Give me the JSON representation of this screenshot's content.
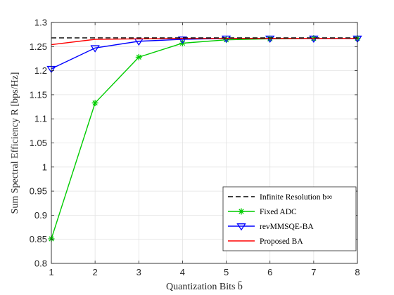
{
  "chart_data": {
    "type": "line",
    "xlabel": "Quantization Bits b̄",
    "ylabel": "Sum Spectral Efficiency R [bps/Hz]",
    "xlim": [
      1,
      8
    ],
    "ylim": [
      0.8,
      1.3
    ],
    "x_ticks": [
      "1",
      "2",
      "3",
      "4",
      "5",
      "6",
      "7",
      "8"
    ],
    "y_ticks": [
      "0.8",
      "0.85",
      "0.9",
      "0.95",
      "1",
      "1.05",
      "1.1",
      "1.15",
      "1.2",
      "1.25",
      "1.3"
    ],
    "grid": true,
    "legend_position": "bottom-right",
    "x": [
      1,
      2,
      3,
      4,
      5,
      6,
      7,
      8
    ],
    "series": [
      {
        "name": "Infinite Resolution b∞",
        "color": "#000000",
        "line": "dashed",
        "marker": "none",
        "values": [
          1.268,
          1.268,
          1.268,
          1.268,
          1.268,
          1.268,
          1.268,
          1.268
        ]
      },
      {
        "name": "Fixed ADC",
        "color": "#00cc00",
        "line": "solid",
        "marker": "asterisk",
        "values": [
          0.851,
          1.133,
          1.228,
          1.257,
          1.264,
          1.266,
          1.267,
          1.267
        ]
      },
      {
        "name": "revMMSQE-BA",
        "color": "#0000ff",
        "line": "solid",
        "marker": "triangle-down",
        "values": [
          1.204,
          1.247,
          1.261,
          1.265,
          1.267,
          1.267,
          1.267,
          1.267
        ]
      },
      {
        "name": "Proposed BA",
        "color": "#ff0000",
        "line": "solid",
        "marker": "none",
        "values": [
          1.254,
          1.265,
          1.266,
          1.267,
          1.267,
          1.267,
          1.267,
          1.267
        ]
      }
    ]
  }
}
